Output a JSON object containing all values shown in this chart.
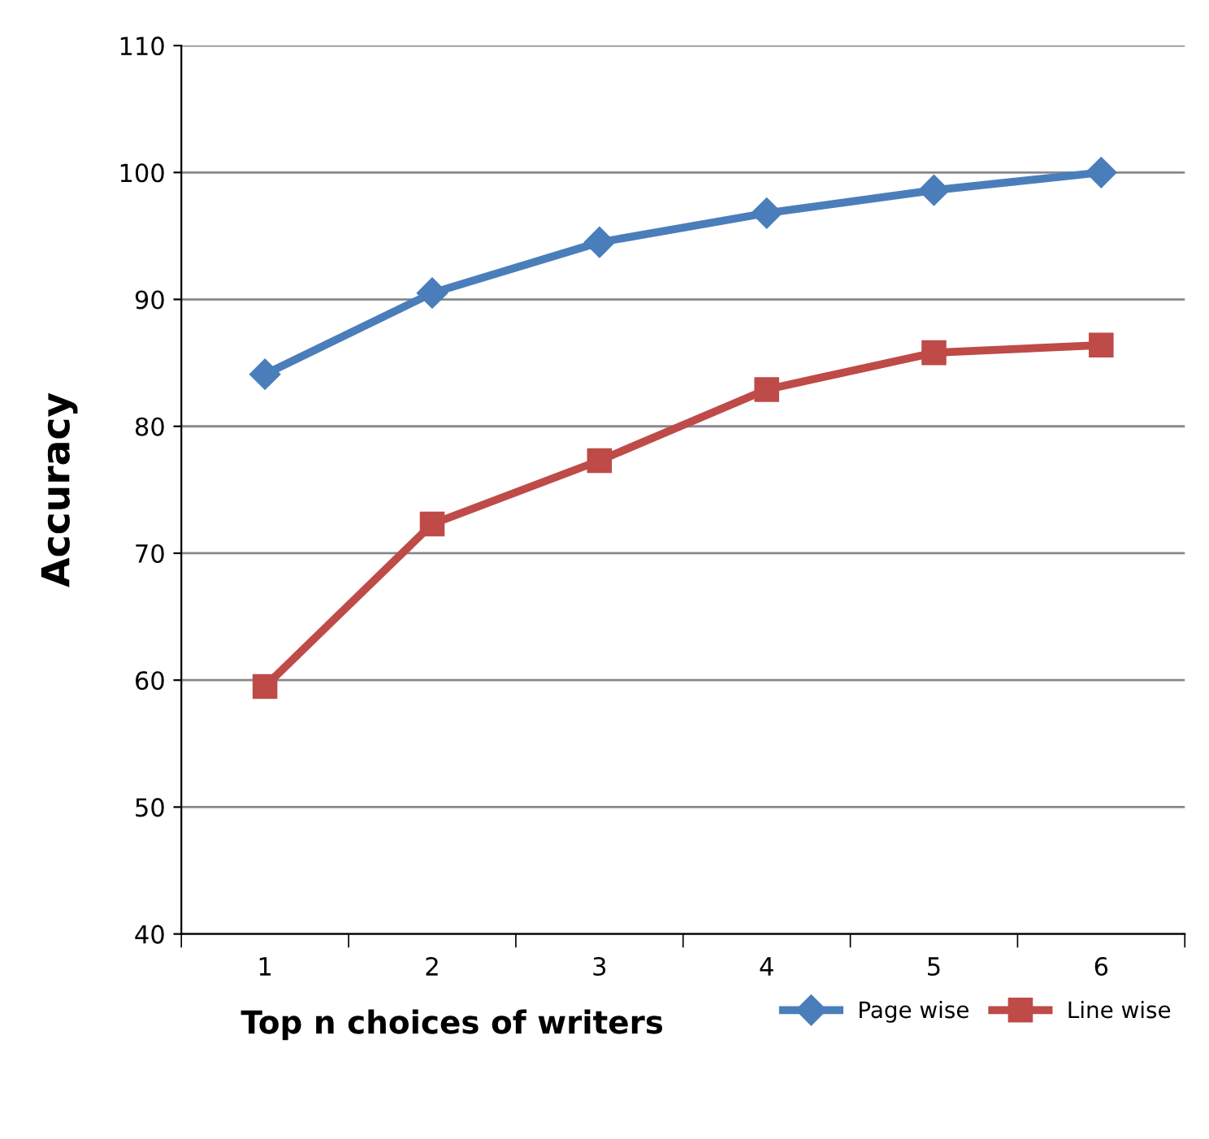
{
  "chart_data": {
    "type": "line",
    "xlabel": "Top n choices of writers",
    "ylabel": "Accuracy",
    "categories": [
      "1",
      "2",
      "3",
      "4",
      "5",
      "6"
    ],
    "series": [
      {
        "name": "Page wise",
        "color": "#4a7ebb",
        "marker": "diamond",
        "values": [
          84.1,
          90.5,
          94.5,
          96.8,
          98.6,
          100
        ]
      },
      {
        "name": "Line wise",
        "color": "#be4b48",
        "marker": "square",
        "values": [
          59.5,
          72.3,
          77.3,
          82.9,
          85.8,
          86.4
        ]
      }
    ],
    "ylim": [
      40,
      110
    ],
    "yticks": [
      40,
      50,
      60,
      70,
      80,
      90,
      100,
      110
    ],
    "grid": "y",
    "legend": "bottom right",
    "line_style": "solid"
  }
}
